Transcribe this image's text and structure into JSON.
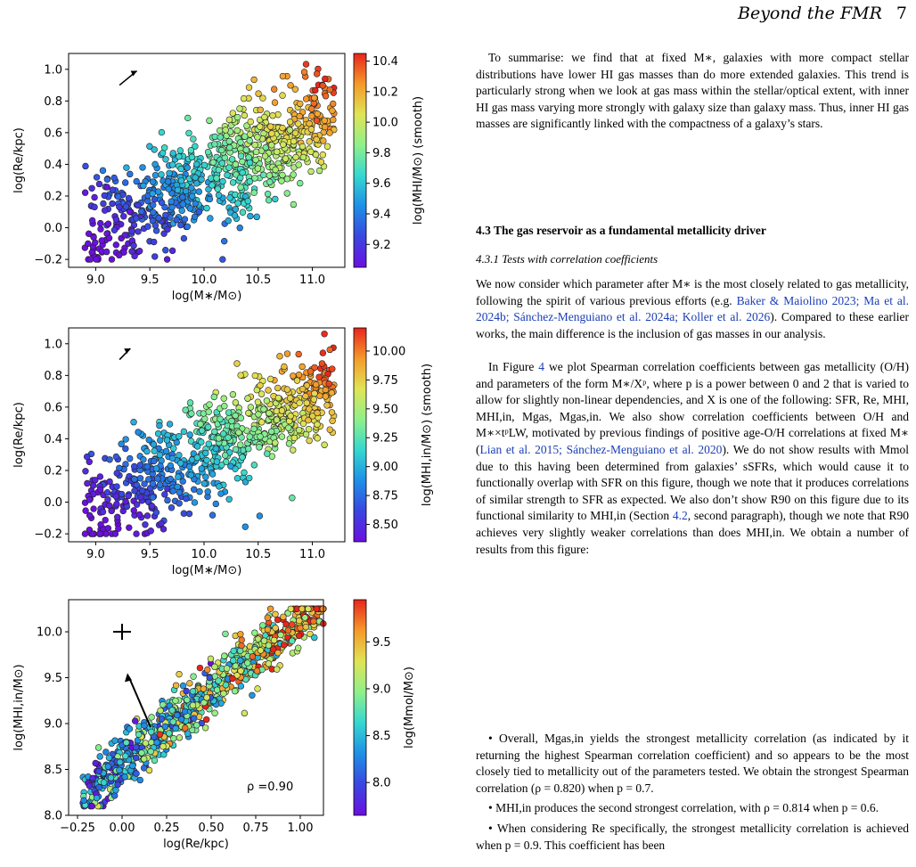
{
  "header": {
    "running_title": "Beyond the FMR",
    "page_number": "7"
  },
  "figure": {
    "panels": [
      {
        "xlabel": "log(M∗/M⊙)",
        "ylabel": "log(Re/kpc)",
        "xticks": [
          "9.0",
          "9.5",
          "10.0",
          "10.5",
          "11.0"
        ],
        "yticks": [
          "−0.2",
          "0.0",
          "0.2",
          "0.4",
          "0.6",
          "0.8",
          "1.0"
        ],
        "colorbar_label": "log(MHI/M⊙) (smooth)",
        "colorbar_ticks": [
          "9.2",
          "9.4",
          "9.6",
          "9.8",
          "10.0",
          "10.2",
          "10.4"
        ]
      },
      {
        "xlabel": "log(M∗/M⊙)",
        "ylabel": "log(Re/kpc)",
        "xticks": [
          "9.0",
          "9.5",
          "10.0",
          "10.5",
          "11.0"
        ],
        "yticks": [
          "−0.2",
          "0.0",
          "0.2",
          "0.4",
          "0.6",
          "0.8",
          "1.0"
        ],
        "colorbar_label": "log(MHI,in/M⊙) (smooth)",
        "colorbar_ticks": [
          "8.50",
          "8.75",
          "9.00",
          "9.25",
          "9.50",
          "9.75",
          "10.00"
        ]
      },
      {
        "xlabel": "log(Re/kpc)",
        "ylabel": "log(MHI,in/M⊙)",
        "xticks": [
          "−0.25",
          "0.00",
          "0.25",
          "0.50",
          "0.75",
          "1.00"
        ],
        "yticks": [
          "8.0",
          "8.5",
          "9.0",
          "9.5",
          "10.0"
        ],
        "colorbar_label": "log(Mmol/M⊙)",
        "colorbar_ticks": [
          "8.0",
          "8.5",
          "9.0",
          "9.5"
        ],
        "annotation": "ρ =0.90"
      }
    ],
    "colormap": [
      "#6b0fe0",
      "#3a46e0",
      "#1e8fe6",
      "#35d7d0",
      "#8ff08a",
      "#e0e455",
      "#f59a2a",
      "#e8241c"
    ]
  },
  "text": {
    "p1": "To summarise: we find that at fixed M∗, galaxies with more compact stellar distributions have lower HI gas masses than do more extended galaxies. This trend is particularly strong when we look at gas mass within the stellar/optical extent, with inner HI gas mass varying more strongly with galaxy size than galaxy mass. Thus, inner HI gas masses are significantly linked with the compactness of a galaxy’s stars.",
    "section_heading": "4.3  The gas reservoir as a fundamental metallicity driver",
    "subsection_heading": "4.3.1  Tests with correlation coefficients",
    "p2_a": "We now consider which parameter after M∗ is the most closely related to gas metallicity, following the spirit of various previous efforts (e.g. ",
    "p2_cites": "Baker & Maiolino 2023; Ma et al. 2024b; Sánchez-Menguiano et al. 2024a; Koller et al. 2026",
    "p2_b": "). Compared to these earlier works, the main difference is the inclusion of gas masses in our analysis.",
    "p3_a": "In Figure ",
    "p3_fig": "4",
    "p3_b": " we plot Spearman correlation coefficients between gas metallicity (O/H) and parameters of the form M∗/Xᵖ, where p is a power between 0 and 2 that is varied to allow for slightly non-linear dependencies, and X is one of the following: SFR, Re, MHI, MHI,in, Mgas, Mgas,in. We also show correlation coefficients between O/H and M∗×tᵖLW, motivated by previous findings of positive age-O/H correlations at fixed M∗ (",
    "p3_cites": "Lian et al. 2015; Sánchez-Menguiano et al. 2020",
    "p3_c": "). We do not show results with Mmol due to this having been determined from galaxies’ sSFRs, which would cause it to functionally overlap with SFR on this figure, though we note that it produces correlations of similar strength to SFR as expected. We also don’t show R90 on this figure due to its functional similarity to MHI,in (Section ",
    "p3_sec": "4.2",
    "p3_d": ", second paragraph), though we note that R90 achieves very slightly weaker correlations than does MHI,in. We obtain a number of results from this figure:",
    "b1": "• Overall, Mgas,in yields the strongest metallicity correlation (as indicated by it returning the highest Spearman correlation coefficient) and so appears to be the most closely tied to metallicity out of the parameters tested. We obtain the strongest Spearman correlation (ρ = 0.820) when p = 0.7.",
    "b2": "• MHI,in produces the second strongest correlation, with ρ = 0.814 when p = 0.6.",
    "b3": "• When considering Re specifically, the strongest metallicity correlation is achieved when p = 0.9. This coefficient has been"
  }
}
